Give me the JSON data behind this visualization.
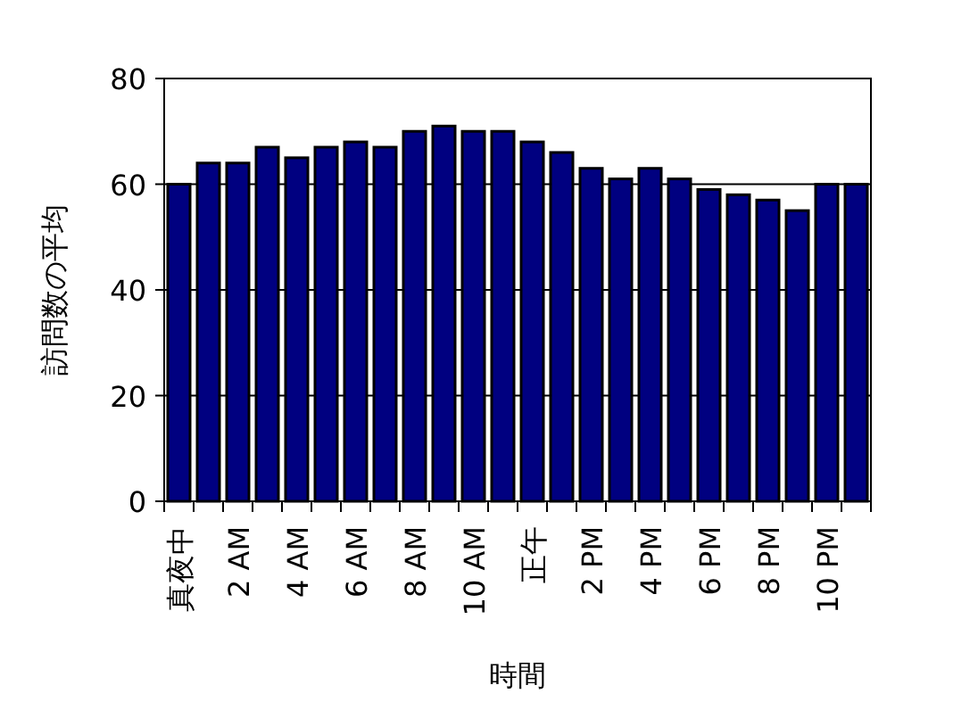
{
  "chart_data": {
    "type": "bar",
    "xlabel": "時間",
    "ylabel": "訪問数の平均",
    "categories": [
      "真夜中",
      null,
      "2 AM",
      null,
      "4 AM",
      null,
      "6 AM",
      null,
      "8 AM",
      null,
      "10 AM",
      null,
      "正午",
      null,
      "2 PM",
      null,
      "4 PM",
      null,
      "6 PM",
      null,
      "8 PM",
      null,
      "10 PM",
      null
    ],
    "values": [
      60,
      64,
      64,
      67,
      65,
      67,
      68,
      67,
      70,
      71,
      70,
      70,
      68,
      66,
      63,
      61,
      63,
      61,
      59,
      58,
      57,
      55,
      60,
      60
    ],
    "color": "#000080",
    "ylim": [
      0,
      80
    ],
    "yticks": [
      0,
      20,
      40,
      60,
      80
    ],
    "grid": "y"
  }
}
